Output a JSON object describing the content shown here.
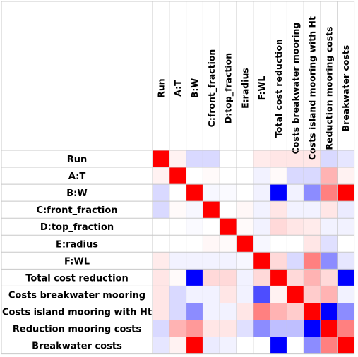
{
  "chart_data": {
    "type": "heatmap",
    "title": "",
    "labels": [
      "Run",
      "A:T",
      "B:W",
      "C:front_fraction",
      "D:top_fraction",
      "E:radius",
      "F:WL",
      "Total cost reduction",
      "Costs breakwater mooring",
      "Costs island mooring with Ht",
      "Reduction mooring costs",
      "Breakwater costs"
    ],
    "value_range": [
      -1,
      1
    ],
    "colors": {
      "positive": "#ff0000",
      "negative": "#0000ff",
      "zero": "#ffffff",
      "grid": "#c8c8c8"
    },
    "values": [
      [
        1.0,
        0.05,
        -0.15,
        -0.15,
        0.0,
        0.0,
        0.08,
        0.1,
        0.1,
        0.1,
        -0.15,
        -0.1
      ],
      [
        0.05,
        1.0,
        0.0,
        0.02,
        0.0,
        0.0,
        -0.05,
        0.02,
        -0.15,
        -0.15,
        0.3,
        0.05
      ],
      [
        -0.15,
        0.0,
        1.0,
        -0.03,
        -0.02,
        0.0,
        -0.05,
        -1.0,
        -0.05,
        -0.45,
        0.5,
        1.0
      ],
      [
        -0.15,
        0.02,
        -0.03,
        1.0,
        0.0,
        0.03,
        -0.05,
        0.1,
        -0.05,
        -0.05,
        0.1,
        -0.08
      ],
      [
        0.0,
        0.0,
        -0.02,
        0.0,
        1.0,
        0.02,
        -0.05,
        0.15,
        0.1,
        0.08,
        -0.05,
        -0.05
      ],
      [
        0.0,
        0.0,
        0.0,
        0.03,
        0.02,
        1.0,
        -0.03,
        0.0,
        0.0,
        0.1,
        -0.12,
        0.0
      ],
      [
        0.08,
        -0.05,
        -0.05,
        -0.05,
        -0.05,
        -0.03,
        1.0,
        0.15,
        -0.15,
        0.5,
        -0.45,
        -0.1
      ],
      [
        0.1,
        0.02,
        -1.0,
        0.15,
        0.15,
        -0.05,
        0.15,
        1.0,
        0.15,
        0.3,
        0.15,
        -1.0
      ],
      [
        0.1,
        -0.15,
        -0.05,
        -0.05,
        0.1,
        -0.05,
        -0.7,
        0.05,
        1.0,
        0.2,
        0.3,
        -0.05
      ],
      [
        0.1,
        -0.15,
        -0.45,
        -0.05,
        -0.05,
        0.1,
        0.5,
        0.3,
        0.2,
        1.0,
        -1.0,
        -0.45
      ],
      [
        -0.15,
        0.3,
        0.4,
        0.1,
        0.1,
        -0.12,
        -0.45,
        -0.25,
        -0.25,
        -1.0,
        1.0,
        0.5
      ],
      [
        -0.1,
        0.05,
        1.0,
        -0.08,
        -0.05,
        0.0,
        0.0,
        -1.0,
        0.0,
        -0.45,
        0.5,
        1.0
      ]
    ]
  }
}
